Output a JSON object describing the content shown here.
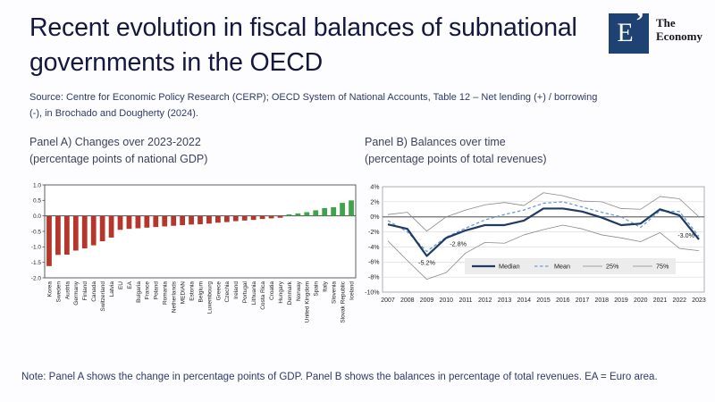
{
  "header": {
    "title": "Recent evolution in fiscal balances of subnational governments in the OECD",
    "logo": {
      "symbol": "E",
      "accent": "’",
      "brand_line1": "The",
      "brand_line2": "Economy",
      "box_color": "#1d4273"
    }
  },
  "source": "Source: Centre for Economic Policy Research (CERP); OECD System of National Accounts, Table 12 – Net lending (+) / borrowing (-), in Brochado and Dougherty (2024).",
  "panels": {
    "a": {
      "title_line1": "Panel A) Changes over 2023-2022",
      "title_line2": "(percentage points of national GDP)"
    },
    "b": {
      "title_line1": "Panel B) Balances over time",
      "title_line2": "(percentage points of total revenues)"
    }
  },
  "note": "Note: Panel A shows the change in percentage points of GDP. Panel B shows the balances in percentage of total revenues. EA = Euro area.",
  "colors": {
    "negative_bar": "#b5372b",
    "positive_bar": "#3ea34b",
    "median": "#1f3a63",
    "mean": "#6f9bd1",
    "quartile": "#8a8a8a",
    "axis_dark": "#4d4d4d",
    "axis_mid": "#9c9c9c",
    "grid_light": "#d8d8d8",
    "tick_text": "#1f1f1f",
    "legend_bg": "#ececec"
  },
  "chart_data": [
    {
      "type": "bar",
      "title": "Panel A) Changes over 2023-2022 (percentage points of national GDP)",
      "xlabel": "",
      "ylabel": "",
      "categories": [
        "Korea",
        "Sweden",
        "Austria",
        "Germany",
        "Finland",
        "Canada",
        "Switzerland",
        "Latvia",
        "EU",
        "EA",
        "Bulgaria",
        "France",
        "Poland",
        "Romania",
        "Netherlands",
        "MEDIAN",
        "Estonia",
        "Belgium",
        "Luxembourg",
        "Greece",
        "Czechia",
        "Ireland",
        "Portugal",
        "Lithuania",
        "Costa Rica",
        "Croatia",
        "Hungary",
        "Denmark",
        "Norway",
        "United Kingdom",
        "Spain",
        "Italy",
        "Slovenia",
        "Slovak Republic",
        "Iceland"
      ],
      "values": [
        -1.62,
        -1.26,
        -1.25,
        -1.12,
        -1.05,
        -0.95,
        -0.82,
        -0.7,
        -0.45,
        -0.42,
        -0.4,
        -0.38,
        -0.36,
        -0.34,
        -0.32,
        -0.3,
        -0.28,
        -0.27,
        -0.25,
        -0.22,
        -0.2,
        -0.17,
        -0.15,
        -0.13,
        -0.1,
        -0.08,
        -0.06,
        0.05,
        0.08,
        0.12,
        0.18,
        0.25,
        0.28,
        0.42,
        0.5
      ],
      "ylim": [
        -2.0,
        1.0
      ],
      "yticks": [
        1.0,
        0.5,
        0.0,
        -0.5,
        -1.0,
        -1.5,
        -2.0
      ],
      "ytick_labels": [
        "1.0",
        "0.5",
        "0.0",
        "-0.5",
        "-1.0",
        "-1.5",
        "-2.0"
      ],
      "grid": false,
      "legend_position": "none"
    },
    {
      "type": "line",
      "title": "Panel B) Balances over time (percentage points of total revenues)",
      "xlabel": "",
      "ylabel": "",
      "x": [
        2007,
        2008,
        2009,
        2010,
        2011,
        2012,
        2013,
        2014,
        2015,
        2016,
        2017,
        2018,
        2019,
        2020,
        2021,
        2022,
        2023
      ],
      "series": [
        {
          "name": "Median",
          "style": "median",
          "values": [
            -1.0,
            -1.6,
            -5.2,
            -2.8,
            -1.8,
            -1.1,
            -1.1,
            -0.5,
            1.1,
            1.1,
            0.7,
            -0.1,
            -1.1,
            -0.9,
            1.0,
            0.2,
            -3.0
          ]
        },
        {
          "name": "Mean",
          "style": "mean",
          "values": [
            -0.5,
            -2.0,
            -4.6,
            -2.7,
            -1.5,
            -0.4,
            0.3,
            0.9,
            1.8,
            2.0,
            1.3,
            0.6,
            0.0,
            -1.4,
            0.8,
            0.7,
            -2.6
          ]
        },
        {
          "name": "25%",
          "style": "quartile",
          "values": [
            -3.2,
            -5.8,
            -8.3,
            -7.4,
            -4.8,
            -3.4,
            -3.5,
            -2.4,
            -1.7,
            -1.1,
            -1.6,
            -2.4,
            -2.8,
            -3.3,
            -2.1,
            -4.2,
            -4.5
          ]
        },
        {
          "name": "75%",
          "style": "quartile",
          "values": [
            0.3,
            0.6,
            -1.9,
            0.0,
            0.9,
            1.6,
            1.9,
            1.5,
            3.2,
            2.8,
            2.1,
            2.0,
            1.1,
            1.0,
            2.7,
            2.4,
            0.0
          ]
        }
      ],
      "ylim": [
        -10,
        4
      ],
      "yticks": [
        4,
        2,
        0,
        -2,
        -4,
        -6,
        -8,
        -10
      ],
      "ytick_labels": [
        "4%",
        "2%",
        "0%",
        "-2%",
        "-4%",
        "-6%",
        "-8%",
        "-10%"
      ],
      "grid": true,
      "legend": [
        "Median",
        "Mean",
        "25%",
        "75%"
      ],
      "legend_position": "bottom-center-inside",
      "annotations": [
        {
          "x": 2009,
          "y": -5.2,
          "label": "-5.2%",
          "placement": "below"
        },
        {
          "x": 2010,
          "y": -2.8,
          "label": "-2.8%",
          "placement": "right"
        },
        {
          "x": 2023,
          "y": -3.0,
          "label": "-3.0%",
          "placement": "left"
        }
      ]
    }
  ]
}
